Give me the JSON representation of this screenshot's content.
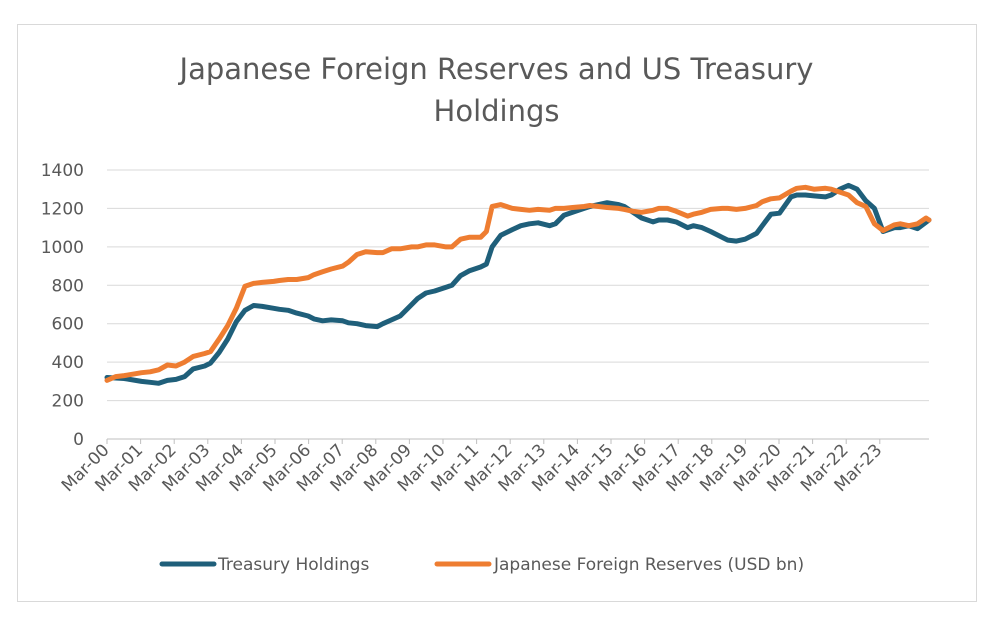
{
  "chart_data": {
    "type": "line",
    "title_lines": [
      "Japanese Foreign Reserves and US Treasury",
      "Holdings"
    ],
    "xlabel": "",
    "ylabel": "",
    "ylim": [
      0,
      1400
    ],
    "yticks": [
      0,
      200,
      400,
      600,
      800,
      1000,
      1200,
      1400
    ],
    "categories": [
      "Mar-00",
      "Mar-01",
      "Mar-02",
      "Mar-03",
      "Mar-04",
      "Mar-05",
      "Mar-06",
      "Mar-07",
      "Mar-08",
      "Mar-09",
      "Mar-10",
      "Mar-11",
      "Mar-12",
      "Mar-13",
      "Mar-14",
      "Mar-15",
      "Mar-16",
      "Mar-17",
      "Mar-18",
      "Mar-19",
      "Mar-20",
      "Mar-21",
      "Mar-22",
      "Mar-23"
    ],
    "x_range": [
      "2000-03",
      "2024-01"
    ],
    "grid": true,
    "legend_position": "bottom",
    "series": [
      {
        "name": "Treasury Holdings",
        "color": "#1f5f7a",
        "points": [
          [
            "2000-03",
            320
          ],
          [
            "2000-09",
            315
          ],
          [
            "2001-03",
            300
          ],
          [
            "2001-06",
            295
          ],
          [
            "2001-09",
            290
          ],
          [
            "2001-12",
            305
          ],
          [
            "2002-03",
            310
          ],
          [
            "2002-06",
            325
          ],
          [
            "2002-09",
            365
          ],
          [
            "2003-01",
            380
          ],
          [
            "2003-03",
            395
          ],
          [
            "2003-06",
            450
          ],
          [
            "2003-09",
            520
          ],
          [
            "2003-12",
            610
          ],
          [
            "2004-03",
            670
          ],
          [
            "2004-06",
            695
          ],
          [
            "2004-09",
            690
          ],
          [
            "2005-01",
            680
          ],
          [
            "2005-03",
            675
          ],
          [
            "2005-06",
            670
          ],
          [
            "2005-09",
            655
          ],
          [
            "2006-01",
            640
          ],
          [
            "2006-03",
            625
          ],
          [
            "2006-06",
            615
          ],
          [
            "2006-09",
            620
          ],
          [
            "2007-01",
            615
          ],
          [
            "2007-03",
            605
          ],
          [
            "2007-06",
            600
          ],
          [
            "2007-09",
            590
          ],
          [
            "2008-01",
            585
          ],
          [
            "2008-03",
            600
          ],
          [
            "2008-06",
            620
          ],
          [
            "2008-09",
            640
          ],
          [
            "2009-01",
            700
          ],
          [
            "2009-03",
            730
          ],
          [
            "2009-06",
            760
          ],
          [
            "2009-09",
            770
          ],
          [
            "2010-01",
            790
          ],
          [
            "2010-03",
            800
          ],
          [
            "2010-06",
            850
          ],
          [
            "2010-09",
            875
          ],
          [
            "2011-01",
            895
          ],
          [
            "2011-03",
            910
          ],
          [
            "2011-05",
            1000
          ],
          [
            "2011-08",
            1060
          ],
          [
            "2011-12",
            1090
          ],
          [
            "2012-03",
            1110
          ],
          [
            "2012-06",
            1120
          ],
          [
            "2012-09",
            1125
          ],
          [
            "2013-01",
            1110
          ],
          [
            "2013-03",
            1120
          ],
          [
            "2013-06",
            1165
          ],
          [
            "2013-09",
            1180
          ],
          [
            "2014-01",
            1200
          ],
          [
            "2014-03",
            1210
          ],
          [
            "2014-06",
            1220
          ],
          [
            "2014-09",
            1230
          ],
          [
            "2015-01",
            1220
          ],
          [
            "2015-03",
            1210
          ],
          [
            "2015-06",
            1180
          ],
          [
            "2015-09",
            1150
          ],
          [
            "2016-01",
            1130
          ],
          [
            "2016-03",
            1140
          ],
          [
            "2016-06",
            1140
          ],
          [
            "2016-09",
            1130
          ],
          [
            "2017-01",
            1100
          ],
          [
            "2017-03",
            1110
          ],
          [
            "2017-06",
            1100
          ],
          [
            "2017-09",
            1080
          ],
          [
            "2018-01",
            1050
          ],
          [
            "2018-03",
            1035
          ],
          [
            "2018-06",
            1030
          ],
          [
            "2018-09",
            1040
          ],
          [
            "2019-01",
            1070
          ],
          [
            "2019-03",
            1110
          ],
          [
            "2019-06",
            1170
          ],
          [
            "2019-09",
            1175
          ],
          [
            "2020-01",
            1260
          ],
          [
            "2020-03",
            1270
          ],
          [
            "2020-06",
            1270
          ],
          [
            "2020-09",
            1265
          ],
          [
            "2021-01",
            1260
          ],
          [
            "2021-03",
            1270
          ],
          [
            "2021-06",
            1300
          ],
          [
            "2021-09",
            1320
          ],
          [
            "2021-12",
            1300
          ],
          [
            "2022-03",
            1240
          ],
          [
            "2022-06",
            1200
          ],
          [
            "2022-09",
            1080
          ],
          [
            "2023-01",
            1100
          ],
          [
            "2023-03",
            1100
          ],
          [
            "2023-06",
            1110
          ],
          [
            "2023-09",
            1095
          ],
          [
            "2024-01",
            1140
          ]
        ]
      },
      {
        "name": "Japanese Foreign Reserves (USD bn)",
        "color": "#ee7d31",
        "points": [
          [
            "2000-03",
            305
          ],
          [
            "2000-06",
            325
          ],
          [
            "2000-09",
            330
          ],
          [
            "2001-01",
            340
          ],
          [
            "2001-03",
            345
          ],
          [
            "2001-06",
            350
          ],
          [
            "2001-09",
            360
          ],
          [
            "2001-12",
            385
          ],
          [
            "2002-03",
            380
          ],
          [
            "2002-06",
            400
          ],
          [
            "2002-09",
            430
          ],
          [
            "2003-01",
            445
          ],
          [
            "2003-03",
            455
          ],
          [
            "2003-06",
            520
          ],
          [
            "2003-09",
            590
          ],
          [
            "2003-12",
            680
          ],
          [
            "2004-03",
            795
          ],
          [
            "2004-06",
            810
          ],
          [
            "2004-09",
            815
          ],
          [
            "2005-01",
            820
          ],
          [
            "2005-03",
            825
          ],
          [
            "2005-06",
            830
          ],
          [
            "2005-09",
            830
          ],
          [
            "2006-01",
            840
          ],
          [
            "2006-03",
            855
          ],
          [
            "2006-06",
            870
          ],
          [
            "2006-09",
            885
          ],
          [
            "2007-01",
            900
          ],
          [
            "2007-03",
            920
          ],
          [
            "2007-06",
            960
          ],
          [
            "2007-09",
            975
          ],
          [
            "2008-01",
            970
          ],
          [
            "2008-03",
            970
          ],
          [
            "2008-06",
            990
          ],
          [
            "2008-09",
            990
          ],
          [
            "2009-01",
            1000
          ],
          [
            "2009-03",
            1000
          ],
          [
            "2009-06",
            1010
          ],
          [
            "2009-09",
            1010
          ],
          [
            "2010-01",
            1000
          ],
          [
            "2010-03",
            1000
          ],
          [
            "2010-06",
            1040
          ],
          [
            "2010-09",
            1050
          ],
          [
            "2011-01",
            1050
          ],
          [
            "2011-03",
            1080
          ],
          [
            "2011-05",
            1210
          ],
          [
            "2011-08",
            1220
          ],
          [
            "2011-12",
            1200
          ],
          [
            "2012-03",
            1195
          ],
          [
            "2012-06",
            1190
          ],
          [
            "2012-09",
            1195
          ],
          [
            "2013-01",
            1190
          ],
          [
            "2013-03",
            1200
          ],
          [
            "2013-06",
            1200
          ],
          [
            "2013-09",
            1205
          ],
          [
            "2014-01",
            1210
          ],
          [
            "2014-03",
            1215
          ],
          [
            "2014-06",
            1210
          ],
          [
            "2014-09",
            1205
          ],
          [
            "2015-01",
            1200
          ],
          [
            "2015-03",
            1195
          ],
          [
            "2015-06",
            1185
          ],
          [
            "2015-09",
            1180
          ],
          [
            "2016-01",
            1190
          ],
          [
            "2016-03",
            1200
          ],
          [
            "2016-06",
            1200
          ],
          [
            "2016-09",
            1185
          ],
          [
            "2017-01",
            1160
          ],
          [
            "2017-03",
            1170
          ],
          [
            "2017-06",
            1180
          ],
          [
            "2017-09",
            1195
          ],
          [
            "2018-01",
            1200
          ],
          [
            "2018-03",
            1200
          ],
          [
            "2018-06",
            1195
          ],
          [
            "2018-09",
            1200
          ],
          [
            "2019-01",
            1215
          ],
          [
            "2019-03",
            1235
          ],
          [
            "2019-06",
            1250
          ],
          [
            "2019-09",
            1255
          ],
          [
            "2020-01",
            1290
          ],
          [
            "2020-03",
            1305
          ],
          [
            "2020-06",
            1310
          ],
          [
            "2020-09",
            1300
          ],
          [
            "2021-01",
            1305
          ],
          [
            "2021-03",
            1300
          ],
          [
            "2021-06",
            1285
          ],
          [
            "2021-09",
            1270
          ],
          [
            "2021-12",
            1230
          ],
          [
            "2022-03",
            1210
          ],
          [
            "2022-06",
            1120
          ],
          [
            "2022-09",
            1085
          ],
          [
            "2023-01",
            1115
          ],
          [
            "2023-03",
            1120
          ],
          [
            "2023-06",
            1110
          ],
          [
            "2023-09",
            1120
          ],
          [
            "2023-12",
            1150
          ],
          [
            "2024-01",
            1140
          ]
        ]
      }
    ]
  }
}
